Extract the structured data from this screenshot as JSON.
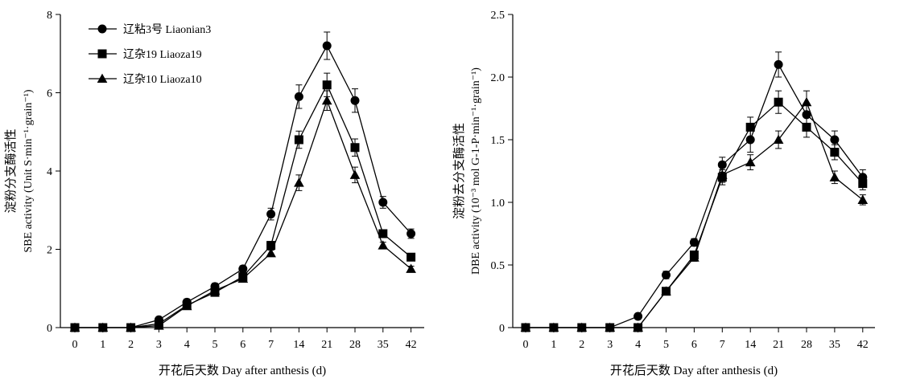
{
  "chart_data": [
    {
      "type": "line",
      "categories": [
        "0",
        "1",
        "2",
        "3",
        "4",
        "5",
        "6",
        "7",
        "14",
        "21",
        "28",
        "35",
        "42"
      ],
      "xlabel": "开花后天数 Day after anthesis (d)",
      "ylabel_cn": "淀粉分支酶活性",
      "ylabel_en": "SBE activity (Unit S·min⁻¹·grain⁻¹)",
      "ylim": [
        0,
        8
      ],
      "yticks": [
        "0",
        "2",
        "4",
        "6",
        "8"
      ],
      "legend_position": "top-left",
      "series": [
        {
          "name": "辽粘3号 Liaonian3",
          "marker": "circle",
          "values": [
            0,
            0,
            0,
            0.2,
            0.65,
            1.05,
            1.5,
            2.9,
            5.9,
            7.2,
            5.8,
            3.2,
            2.4
          ],
          "errors": [
            0,
            0,
            0,
            0.05,
            0.08,
            0.08,
            0.08,
            0.15,
            0.3,
            0.35,
            0.3,
            0.15,
            0.12
          ]
        },
        {
          "name": "辽杂19 Liaoza19",
          "marker": "square",
          "values": [
            0,
            0,
            0,
            0.1,
            0.57,
            0.9,
            1.3,
            2.1,
            4.8,
            6.2,
            4.6,
            2.4,
            1.8
          ],
          "errors": [
            0,
            0,
            0,
            0.04,
            0.07,
            0.07,
            0.07,
            0.1,
            0.22,
            0.3,
            0.22,
            0.1,
            0.08
          ]
        },
        {
          "name": "辽杂10 Liaoza10",
          "marker": "triangle",
          "values": [
            0,
            0,
            0,
            0.05,
            0.55,
            0.95,
            1.25,
            1.9,
            3.7,
            5.8,
            3.9,
            2.1,
            1.5
          ],
          "errors": [
            0,
            0,
            0,
            0.03,
            0.06,
            0.06,
            0.07,
            0.08,
            0.2,
            0.25,
            0.2,
            0.08,
            0.07
          ]
        }
      ]
    },
    {
      "type": "line",
      "categories": [
        "0",
        "1",
        "2",
        "3",
        "4",
        "5",
        "6",
        "7",
        "14",
        "21",
        "28",
        "35",
        "42"
      ],
      "xlabel": "开花后天数 Day after anthesis (d)",
      "ylabel_cn": "淀粉去分支酶活性",
      "ylabel_en": "DBE activity (10⁻³ mol G-1-P·min⁻¹·grain⁻¹)",
      "ylim": [
        0,
        2.5
      ],
      "yticks": [
        "0",
        "0.5",
        "1.0",
        "1.5",
        "2.0",
        "2.5"
      ],
      "series": [
        {
          "name": "辽粘3号 Liaonian3",
          "marker": "circle",
          "values": [
            0,
            0,
            0,
            0,
            0.09,
            0.42,
            0.68,
            1.3,
            1.5,
            2.1,
            1.7,
            1.5,
            1.2
          ],
          "errors": [
            0,
            0,
            0,
            0,
            0.02,
            0.03,
            0.03,
            0.06,
            0.1,
            0.1,
            0.08,
            0.07,
            0.06
          ]
        },
        {
          "name": "辽杂19 Liaoza19",
          "marker": "square",
          "values": [
            0,
            0,
            0,
            0,
            0,
            0.29,
            0.58,
            1.2,
            1.6,
            1.8,
            1.6,
            1.4,
            1.15
          ],
          "errors": [
            0,
            0,
            0,
            0,
            0,
            0.02,
            0.03,
            0.06,
            0.08,
            0.09,
            0.08,
            0.06,
            0.05
          ]
        },
        {
          "name": "辽杂10 Liaoza10",
          "marker": "triangle",
          "values": [
            0,
            0,
            0,
            0,
            0,
            0.29,
            0.56,
            1.22,
            1.32,
            1.5,
            1.8,
            1.2,
            1.02
          ],
          "errors": [
            0,
            0,
            0,
            0,
            0,
            0.02,
            0.03,
            0.06,
            0.06,
            0.07,
            0.09,
            0.05,
            0.04
          ]
        }
      ]
    }
  ]
}
